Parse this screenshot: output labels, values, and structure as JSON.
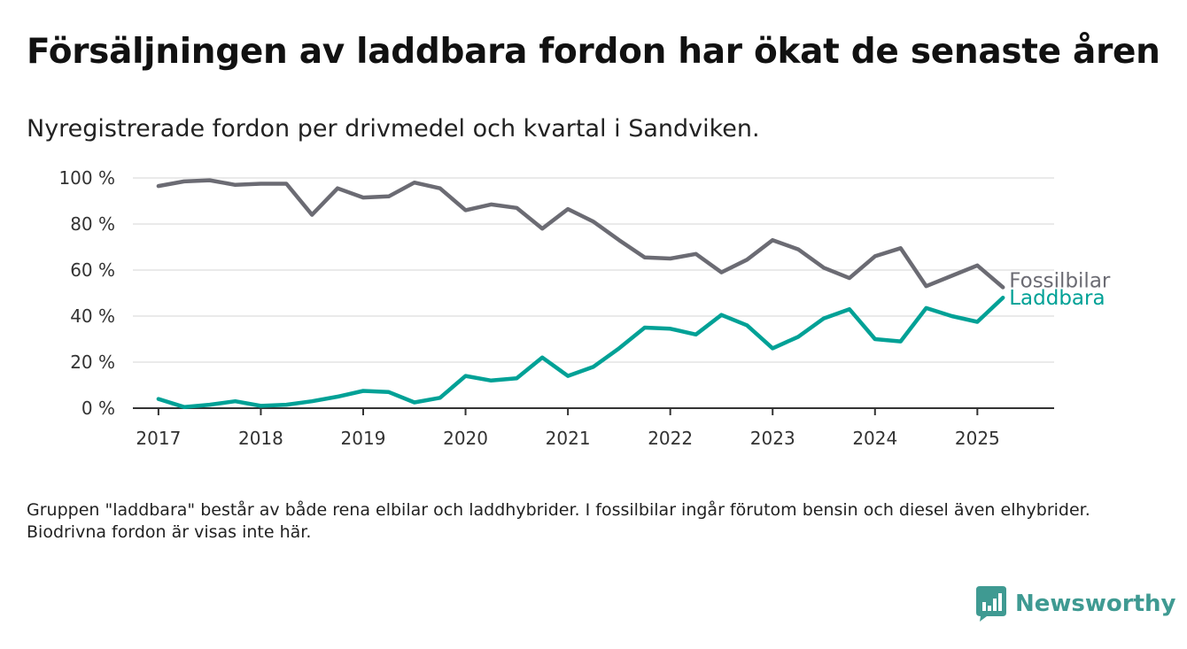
{
  "title": "Försäljningen av laddbara fordon har ökat de senaste åren",
  "subtitle": "Nyregistrerade fordon per drivmedel och kvartal i Sandviken.",
  "footnote": "Gruppen \"laddbara\" består av både rena elbilar och laddhybrider. I fossilbilar ingår förutom bensin och diesel även elhybrider. Biodrivna fordon är visas inte här.",
  "brand": {
    "name": "Newsworthy",
    "icon": "newsworthy-logo-icon",
    "color": "#3f9a92"
  },
  "chart_data": {
    "type": "line",
    "title": "Försäljningen av laddbara fordon har ökat de senaste åren",
    "subtitle": "Nyregistrerade fordon per drivmedel och kvartal i Sandviken.",
    "xlabel": "",
    "ylabel": "",
    "x": [
      "2017-Q1",
      "2017-Q2",
      "2017-Q3",
      "2017-Q4",
      "2018-Q1",
      "2018-Q2",
      "2018-Q3",
      "2018-Q4",
      "2019-Q1",
      "2019-Q2",
      "2019-Q3",
      "2019-Q4",
      "2020-Q1",
      "2020-Q2",
      "2020-Q3",
      "2020-Q4",
      "2021-Q1",
      "2021-Q2",
      "2021-Q3",
      "2021-Q4",
      "2022-Q1",
      "2022-Q2",
      "2022-Q3",
      "2022-Q4",
      "2023-Q1",
      "2023-Q2",
      "2023-Q3",
      "2023-Q4",
      "2024-Q1",
      "2024-Q2",
      "2024-Q3",
      "2024-Q4",
      "2025-Q1",
      "2025-Q2"
    ],
    "xlim": [
      "2016-Q4",
      "2025-Q4"
    ],
    "x_ticks": [
      "2017",
      "2018",
      "2019",
      "2020",
      "2021",
      "2022",
      "2023",
      "2024",
      "2025"
    ],
    "ylim": [
      0,
      100
    ],
    "y_ticks": [
      0,
      20,
      40,
      60,
      80,
      100
    ],
    "y_tick_labels": [
      "0 %",
      "20 %",
      "40 %",
      "60 %",
      "80 %",
      "100 %"
    ],
    "grid": true,
    "legend": "direct labels at line ends",
    "series": [
      {
        "name": "Fossilbilar",
        "color": "#6b6b73",
        "values": [
          96.5,
          98.5,
          99,
          97,
          97.5,
          97.5,
          84,
          95.5,
          91.5,
          92,
          98,
          95.5,
          86,
          88.5,
          87,
          78,
          86.5,
          81,
          73,
          65.5,
          65,
          67,
          59,
          64.5,
          73,
          69,
          61,
          56.5,
          66,
          69.5,
          53,
          57.5,
          62,
          52.5
        ]
      },
      {
        "name": "Laddbara",
        "color": "#00a196",
        "values": [
          4,
          0.5,
          1.5,
          3,
          1,
          1.5,
          3,
          5,
          7.5,
          7,
          2.5,
          4.5,
          14,
          12,
          13,
          22,
          14,
          18,
          26,
          35,
          34.5,
          32,
          40.5,
          36,
          26,
          31,
          39,
          43,
          30,
          29,
          43.5,
          40,
          37.5,
          48
        ]
      }
    ]
  }
}
